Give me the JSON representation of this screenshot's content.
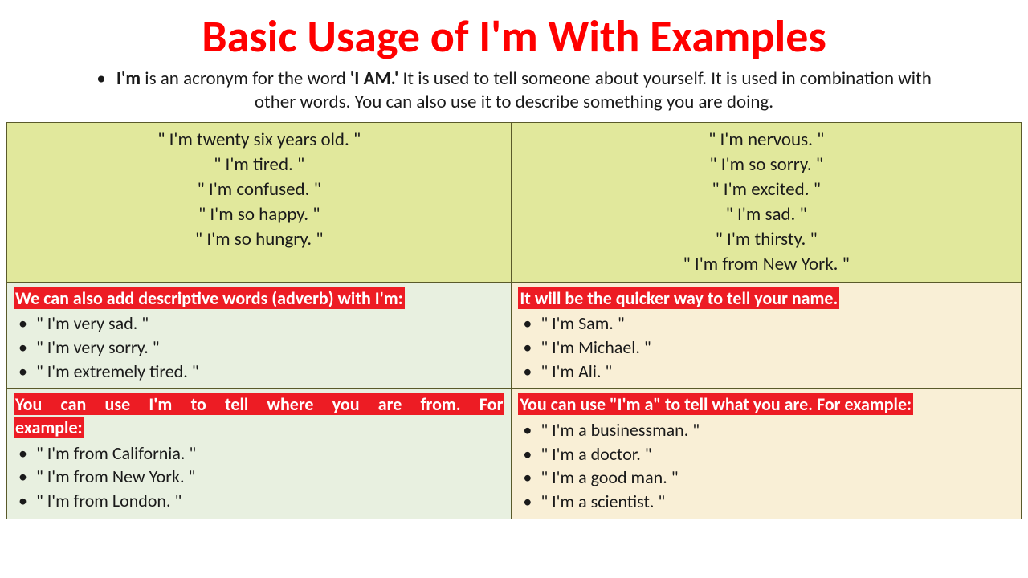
{
  "title": {
    "text": "Basic Usage of I'm With Examples",
    "color": "#ff0000",
    "fontsize": 56
  },
  "intro": {
    "prefix_bold": "I'm",
    "mid1": " is an acronym for the word ",
    "bold2": "'I AM.'",
    "rest": " It is used to tell someone about yourself. It is used in combination with other words. You can also use it to describe something you are doing.",
    "fontsize": 23,
    "color": "#1a1a1a"
  },
  "top_row": {
    "bg": "#e1e89c",
    "fontsize": 23,
    "left": [
      "\" I'm twenty six years old. \"",
      "\" I'm tired. \"",
      "\" I'm confused. \"",
      "\" I'm so happy. \"",
      "\" I'm so hungry. \""
    ],
    "right": [
      "\" I'm nervous. \"",
      "\" I'm so sorry. \"",
      "\" I'm excited. \"",
      "\" I'm sad. \"",
      "\" I'm thirsty. \"",
      "\" I'm from New York. \""
    ]
  },
  "mid_row": {
    "header_bg": "#ed1c24",
    "header_color": "#ffffff",
    "fontsize": 22,
    "left": {
      "bg": "#e8f0e0",
      "header": "We can also add descriptive words (adverb) with I'm:",
      "items": [
        "\" I'm very sad. \"",
        "\" I'm very sorry. \"",
        "\" I'm extremely tired. \""
      ]
    },
    "right": {
      "bg": "#f9efd6",
      "header": "It will be the quicker way to tell your name.",
      "items": [
        "\" I'm Sam. \"",
        "\" I'm Michael. \"",
        "\" I'm Ali. \""
      ]
    }
  },
  "bot_row": {
    "header_bg": "#ed1c24",
    "header_color": "#ffffff",
    "fontsize": 22,
    "left": {
      "bg": "#e8f0e0",
      "header_line1": "You can use I'm to tell where you are from. For",
      "header_line2": "example:",
      "items": [
        "\" I'm from California. \"",
        "\" I'm from New York. \"",
        "\" I'm from London. \""
      ]
    },
    "right": {
      "bg": "#f9efd6",
      "header": "You can use \"I'm a\" to tell what you are. For example:",
      "items": [
        "\" I'm a businessman. \"",
        "\" I'm a doctor. \"",
        "\" I'm a good man. \"",
        "\" I'm a scientist. \""
      ]
    }
  },
  "watermark_colors": {
    "c1": "#7fcfa8",
    "c2": "#4aa9b5"
  }
}
